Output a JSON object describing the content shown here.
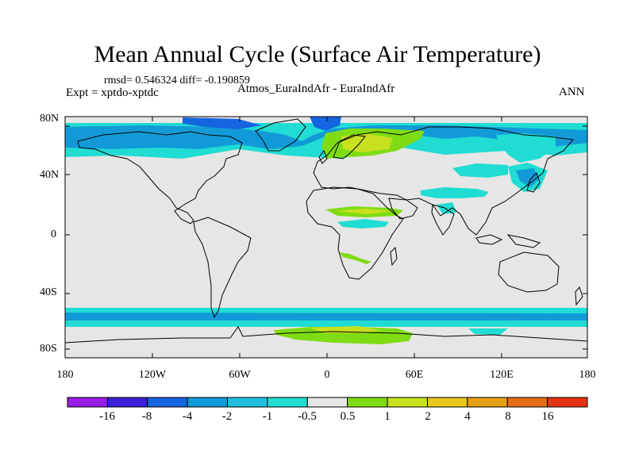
{
  "title": "Mean Annual Cycle (Surface Air Temperature)",
  "stats": "rmsd= 0.546324 diff= -0.190859",
  "expt": "Expt = xptdo-xptdc",
  "region": "Atmos_EuraIndAfr - EuraIndAfr",
  "season": "ANN",
  "lat_labels": [
    "80N",
    "40N",
    "0",
    "40S",
    "80S"
  ],
  "lon_labels": [
    "180",
    "120W",
    "60W",
    "0",
    "60E",
    "120E",
    "180"
  ],
  "colorbar": {
    "labels": [
      "-16",
      "-8",
      "-4",
      "-2",
      "-1",
      "-0.5",
      "0.5",
      "1",
      "2",
      "4",
      "8",
      "16"
    ],
    "colors": [
      "#9a1ee6",
      "#3a1fd6",
      "#1565e0",
      "#129ad8",
      "#1fc0e0",
      "#20dcd2",
      "#e6e6e6",
      "#7fdc14",
      "#c8e01e",
      "#e6c81e",
      "#e6a014",
      "#e66e14",
      "#e63214"
    ]
  },
  "map_colors": {
    "ocean": "#e6e6e6",
    "band_light": "#20dcd2",
    "band_mid": "#129ad8",
    "band_dark": "#1565e0",
    "pos_1": "#7fdc14",
    "pos_2": "#c8e01e"
  }
}
